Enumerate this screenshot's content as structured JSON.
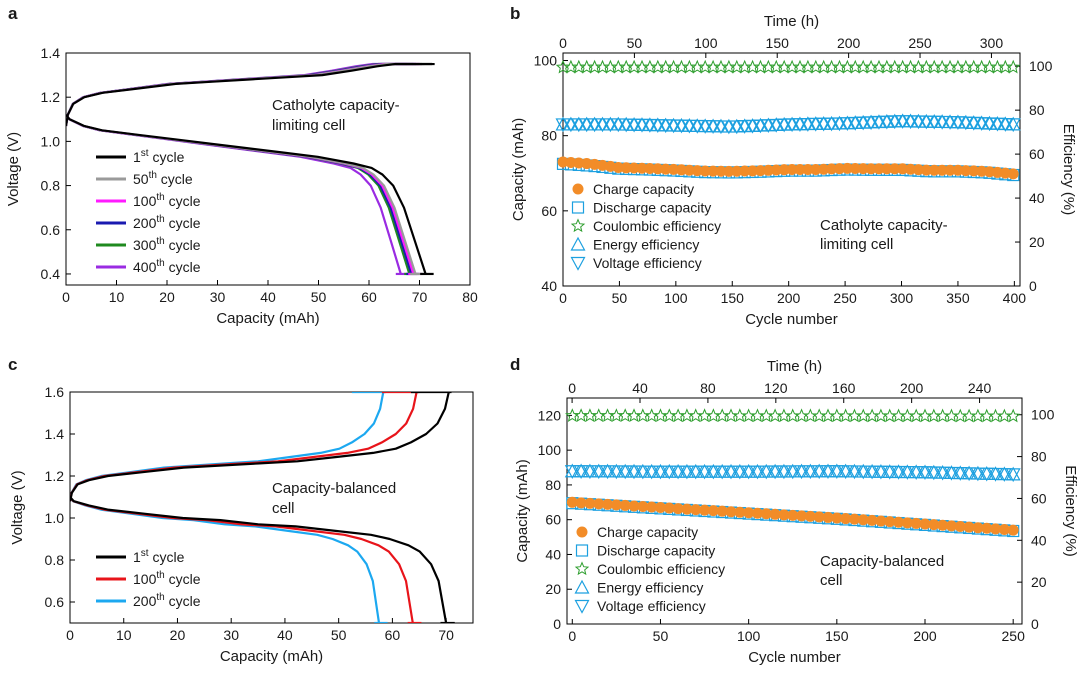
{
  "figure": {
    "panel_labels": [
      "a",
      "b",
      "c",
      "d"
    ]
  },
  "chart_data": [
    {
      "id": "a",
      "type": "line",
      "title": "",
      "xlabel": "Capacity (mAh)",
      "ylabel": "Voltage (V)",
      "xlim": [
        0,
        80
      ],
      "ylim": [
        0.35,
        1.4
      ],
      "xticks": [
        "0",
        "10",
        "20",
        "30",
        "40",
        "50",
        "60",
        "70",
        "80"
      ],
      "yticks": [
        "0.4",
        "0.6",
        "0.8",
        "1.0",
        "1.2",
        "1.4"
      ],
      "annotation": [
        "Catholyte capacity-",
        "limiting cell"
      ],
      "legend": [
        {
          "base": "1",
          "sup": "st",
          "rest": " cycle"
        },
        {
          "base": "50",
          "sup": "th",
          "rest": " cycle"
        },
        {
          "base": "100",
          "sup": "th",
          "rest": " cycle"
        },
        {
          "base": "200",
          "sup": "th",
          "rest": " cycle"
        },
        {
          "base": "300",
          "sup": "th",
          "rest": " cycle"
        },
        {
          "base": "400",
          "sup": "th",
          "rest": " cycle"
        }
      ],
      "series": [
        {
          "name": "1st cycle",
          "color": "#000000",
          "charge_end": 72.5,
          "discharge_end": 71.2
        },
        {
          "name": "50th cycle",
          "color": "#9a9a9a",
          "charge_end": 70.5,
          "discharge_end": 69.2
        },
        {
          "name": "100th cycle",
          "color": "#ff1aff",
          "charge_end": 70.0,
          "discharge_end": 68.8
        },
        {
          "name": "200th cycle",
          "color": "#1a1ab0",
          "charge_end": 69.3,
          "discharge_end": 68.4
        },
        {
          "name": "300th cycle",
          "color": "#1f8a1f",
          "charge_end": 68.8,
          "discharge_end": 68.0
        },
        {
          "name": "400th cycle",
          "color": "#9a2be2",
          "charge_end": 67.5,
          "discharge_end": 66.3
        }
      ],
      "charge_profile": {
        "x_frac": [
          0,
          0.005,
          0.02,
          0.05,
          0.1,
          0.2,
          0.3,
          0.4,
          0.5,
          0.6,
          0.7,
          0.78,
          0.85,
          0.9,
          0.95,
          1.0
        ],
        "voltage": [
          1.07,
          1.12,
          1.17,
          1.2,
          1.22,
          1.24,
          1.26,
          1.27,
          1.28,
          1.29,
          1.3,
          1.32,
          1.34,
          1.35,
          1.35,
          1.35
        ]
      },
      "discharge_profile": {
        "x_frac": [
          0,
          0.01,
          0.05,
          0.1,
          0.2,
          0.3,
          0.4,
          0.5,
          0.6,
          0.7,
          0.8,
          0.85,
          0.88,
          0.91,
          0.94,
          0.97,
          1.0
        ],
        "voltage": [
          1.12,
          1.1,
          1.07,
          1.05,
          1.03,
          1.01,
          0.99,
          0.97,
          0.95,
          0.93,
          0.9,
          0.88,
          0.85,
          0.8,
          0.7,
          0.55,
          0.4
        ]
      }
    },
    {
      "id": "b",
      "type": "scatter",
      "xlabel": "Cycle number",
      "x2label": "Time (h)",
      "ylabel": "Capacity (mAh)",
      "y2label": "Efficiency (%)",
      "xlim": [
        0,
        405
      ],
      "x2lim": [
        0,
        320
      ],
      "ylim": [
        40,
        102
      ],
      "y2lim": [
        0,
        106
      ],
      "xticks": [
        "0",
        "50",
        "100",
        "150",
        "200",
        "250",
        "300",
        "350",
        "400"
      ],
      "x2ticks": [
        "0",
        "50",
        "100",
        "150",
        "200",
        "250",
        "300"
      ],
      "yticks": [
        "40",
        "60",
        "80",
        "100"
      ],
      "y2ticks": [
        "0",
        "20",
        "40",
        "60",
        "80",
        "100"
      ],
      "annotation": [
        "Catholyte capacity-",
        "limiting cell"
      ],
      "legend": [
        "Charge capacity",
        "Discharge capacity",
        "Coulombic efficiency",
        "Energy efficiency",
        "Voltage efficiency"
      ],
      "series": [
        {
          "name": "Charge capacity",
          "marker": "circle",
          "color": "#f28c28",
          "axis": "left",
          "x": [
            0,
            25,
            50,
            75,
            100,
            125,
            150,
            175,
            200,
            225,
            250,
            275,
            300,
            325,
            350,
            375,
            400
          ],
          "values": [
            73,
            72.5,
            71.5,
            71.3,
            71,
            70.6,
            70.5,
            70.7,
            71,
            71,
            71.3,
            71.2,
            71.2,
            70.8,
            70.8,
            70.5,
            69.8
          ]
        },
        {
          "name": "Discharge capacity",
          "marker": "square",
          "color": "#1ca0e0",
          "axis": "left",
          "x": [
            0,
            25,
            50,
            75,
            100,
            125,
            150,
            175,
            200,
            225,
            250,
            275,
            300,
            325,
            350,
            375,
            400
          ],
          "values": [
            72.5,
            72,
            71.2,
            71,
            70.7,
            70.3,
            70.2,
            70.4,
            70.7,
            70.7,
            71,
            70.9,
            70.9,
            70.5,
            70.5,
            70.2,
            69.5
          ]
        },
        {
          "name": "Coulombic efficiency",
          "marker": "star",
          "color": "#2e9e2e",
          "axis": "right",
          "x": [
            0,
            400
          ],
          "values": [
            99.5,
            99.5
          ]
        },
        {
          "name": "Energy efficiency",
          "marker": "triangle-up",
          "color": "#1ca0e0",
          "axis": "right",
          "x": [
            0,
            50,
            100,
            150,
            200,
            250,
            300,
            350,
            400
          ],
          "values": [
            73.5,
            73.5,
            73,
            72.5,
            73.5,
            74,
            75,
            74.5,
            73.5
          ]
        },
        {
          "name": "Voltage efficiency",
          "marker": "triangle-down",
          "color": "#1ca0e0",
          "axis": "right",
          "x": [
            0,
            50,
            100,
            150,
            200,
            250,
            300,
            350,
            400
          ],
          "values": [
            73.5,
            73.5,
            73,
            72.5,
            73.5,
            74,
            75,
            74.5,
            73.5
          ]
        }
      ]
    },
    {
      "id": "c",
      "type": "line",
      "title": "",
      "xlabel": "Capacity (mAh)",
      "ylabel": "Voltage (V)",
      "xlim": [
        0,
        75
      ],
      "ylim": [
        0.5,
        1.6
      ],
      "xticks": [
        "0",
        "10",
        "20",
        "30",
        "40",
        "50",
        "60",
        "70"
      ],
      "yticks": [
        "0.6",
        "0.8",
        "1.0",
        "1.2",
        "1.4",
        "1.6"
      ],
      "annotation": [
        "Capacity-balanced",
        "cell"
      ],
      "legend": [
        {
          "base": "1",
          "sup": "st",
          "rest": " cycle"
        },
        {
          "base": "100",
          "sup": "th",
          "rest": " cycle"
        },
        {
          "base": "200",
          "sup": "th",
          "rest": " cycle"
        }
      ],
      "series": [
        {
          "name": "1st cycle",
          "color": "#000000",
          "charge_end": 70.5,
          "discharge_end": 70.0
        },
        {
          "name": "100th cycle",
          "color": "#e8141a",
          "charge_end": 64.5,
          "discharge_end": 63.8
        },
        {
          "name": "200th cycle",
          "color": "#1ca8f0",
          "charge_end": 58.3,
          "discharge_end": 57.5
        }
      ],
      "charge_profile": {
        "x_frac": [
          0,
          0.005,
          0.02,
          0.05,
          0.1,
          0.2,
          0.3,
          0.4,
          0.5,
          0.6,
          0.7,
          0.8,
          0.86,
          0.9,
          0.94,
          0.97,
          0.99,
          1.0
        ],
        "voltage": [
          1.08,
          1.12,
          1.16,
          1.18,
          1.2,
          1.22,
          1.24,
          1.25,
          1.26,
          1.27,
          1.29,
          1.31,
          1.33,
          1.36,
          1.4,
          1.45,
          1.52,
          1.6
        ]
      },
      "discharge_profile": {
        "x_frac": [
          0,
          0.01,
          0.05,
          0.1,
          0.2,
          0.3,
          0.4,
          0.5,
          0.6,
          0.7,
          0.8,
          0.85,
          0.9,
          0.93,
          0.96,
          0.98,
          1.0
        ],
        "voltage": [
          1.1,
          1.08,
          1.06,
          1.04,
          1.02,
          1.0,
          0.99,
          0.97,
          0.96,
          0.94,
          0.92,
          0.9,
          0.87,
          0.84,
          0.78,
          0.7,
          0.5
        ]
      }
    },
    {
      "id": "d",
      "type": "scatter",
      "xlabel": "Cycle number",
      "x2label": "Time (h)",
      "ylabel": "Capacity (mAh)",
      "y2label": "Efficiency (%)",
      "xlim": [
        -3,
        255
      ],
      "x2lim": [
        -3,
        265
      ],
      "ylim": [
        0,
        130
      ],
      "y2lim": [
        0,
        108
      ],
      "xticks": [
        "0",
        "50",
        "100",
        "150",
        "200",
        "250"
      ],
      "x2ticks": [
        "0",
        "40",
        "80",
        "120",
        "160",
        "200",
        "240"
      ],
      "yticks": [
        "0",
        "20",
        "40",
        "60",
        "80",
        "100",
        "120"
      ],
      "y2ticks": [
        "0",
        "20",
        "40",
        "60",
        "80",
        "100"
      ],
      "annotation": [
        "Capacity-balanced",
        "cell"
      ],
      "legend": [
        "Charge capacity",
        "Discharge capacity",
        "Coulombic efficiency",
        "Energy efficiency",
        "Voltage efficiency"
      ],
      "series": [
        {
          "name": "Charge capacity",
          "marker": "circle",
          "color": "#f28c28",
          "axis": "left",
          "x": [
            0,
            50,
            100,
            150,
            200,
            250
          ],
          "values": [
            70,
            67,
            64,
            61,
            57.5,
            54
          ]
        },
        {
          "name": "Discharge capacity",
          "marker": "square",
          "color": "#1ca0e0",
          "axis": "left",
          "x": [
            0,
            50,
            100,
            150,
            200,
            250
          ],
          "values": [
            69.5,
            66.5,
            63.5,
            60.5,
            57,
            53.5
          ]
        },
        {
          "name": "Coulombic efficiency",
          "marker": "star",
          "color": "#2e9e2e",
          "axis": "right",
          "x": [
            0,
            250
          ],
          "values": [
            99.5,
            99.3
          ]
        },
        {
          "name": "Energy efficiency",
          "marker": "triangle-up",
          "color": "#1ca0e0",
          "axis": "right",
          "x": [
            0,
            50,
            100,
            150,
            200,
            250
          ],
          "values": [
            73,
            72.8,
            72.8,
            73,
            72.5,
            71.5
          ]
        },
        {
          "name": "Voltage efficiency",
          "marker": "triangle-down",
          "color": "#1ca0e0",
          "axis": "right",
          "x": [
            0,
            50,
            100,
            150,
            200,
            250
          ],
          "values": [
            73,
            72.8,
            72.8,
            73,
            72.5,
            71.5
          ]
        }
      ]
    }
  ]
}
